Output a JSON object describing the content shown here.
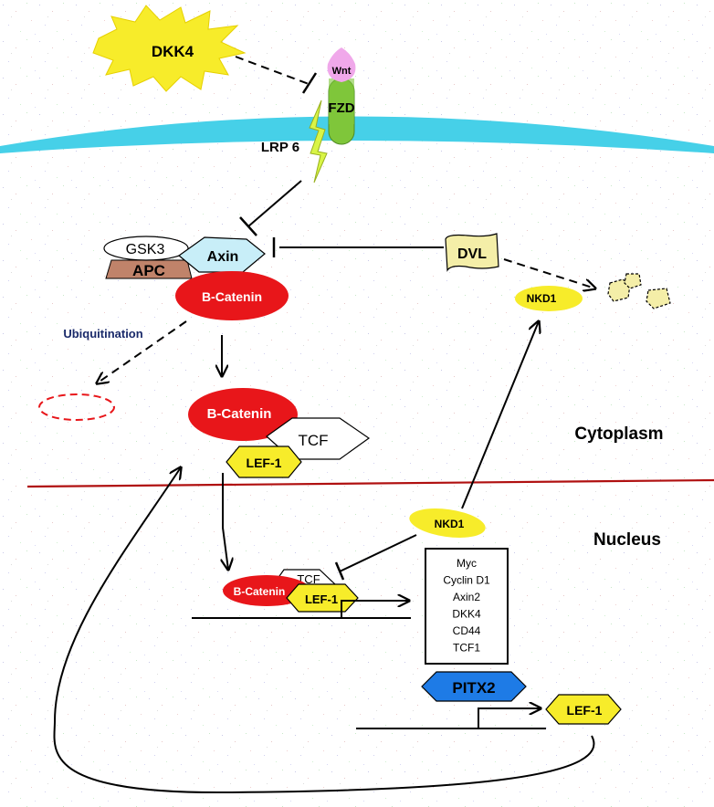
{
  "colors": {
    "membrane": "#46d0e8",
    "catenin": "#e8161a",
    "yellow": "#f7ec2a",
    "lime": "#d9f546",
    "apc": "#c0836a",
    "axin": "#c8eef8",
    "wnt": "#f0a8ea",
    "fzd": "#7fc63a",
    "pitx2": "#1e7be6",
    "nucleus_line": "#b01010",
    "dvl": "#f4eea8"
  },
  "labels": {
    "dkk4": "DKK4",
    "wnt": "Wnt",
    "fzd": "FZD",
    "lrp6": "LRP 6",
    "gsk3": "GSK3",
    "apc": "APC",
    "axin": "Axin",
    "dvl": "DVL",
    "nkd1_cyto": "NKD1",
    "bcatenin_top": "B-Catenin",
    "ubiquitination": "Ubiquitination",
    "bcatenin_mid": "B-Catenin",
    "tcf_mid": "TCF",
    "lef1_mid": "LEF-1",
    "cytoplasm": "Cytoplasm",
    "nucleus": "Nucleus",
    "nkd1_nuc": "NKD1",
    "bcatenin_dna": "B-Catenin",
    "tcf_dna": "TCF",
    "lef1_dna": "LEF-1",
    "pitx2": "PITX2",
    "lef1_bottom": "LEF-1"
  },
  "target_genes": [
    "Myc",
    "Cyclin D1",
    "Axin2",
    "DKK4",
    "CD44",
    "TCF1"
  ]
}
